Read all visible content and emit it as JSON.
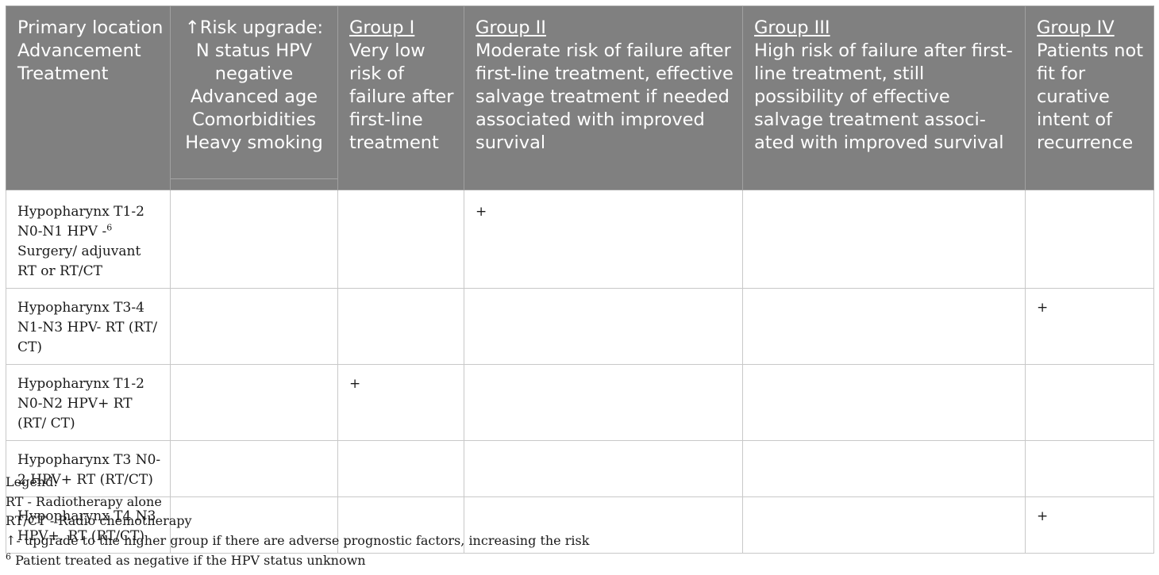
{
  "header": {
    "col1": "Primary loca­tion Advance­ment Treat­ment",
    "col2": "↑Risk upgrade: N status HPV negative Advanced age Comorbidities Heavy smoking",
    "groups": [
      {
        "title": "Group I",
        "desc": "Very low risk of failure after first-line treat­ment"
      },
      {
        "title": "Group II",
        "desc": "Moderate risk of failure after first-line treatment, effective salvage treat­ment if needed associated with improved survival"
      },
      {
        "title": "Group III",
        "desc": "High risk of failure after first-line treatment, still possibility of effective salvage treatment associ­ated with improved sur­vival"
      },
      {
        "title": "Group IV",
        "desc": "Patients not fit for curative intent of recurrence"
      }
    ]
  },
  "rows": [
    {
      "desc_a": "Hypopharynx T1-2 N0-N1 HPV -",
      "sup": "6",
      "desc_b": " Surgery/ adjuvant RT or RT/CT",
      "marks": [
        "",
        "",
        "+",
        "",
        ""
      ]
    },
    {
      "desc_a": "Hypopharynx T3-4 N1-N3 HPV- RT (RT/ CT)",
      "sup": "",
      "desc_b": "",
      "marks": [
        "",
        "",
        "",
        "",
        "+"
      ]
    },
    {
      "desc_a": "Hypopharynx T1-2 N0-N2 HPV+ RT (RT/ CT)",
      "sup": "",
      "desc_b": "",
      "marks": [
        "",
        "+",
        "",
        "",
        ""
      ]
    },
    {
      "desc_a": "Hypopharynx T3 N0-2 HPV+ RT (RT/CT)",
      "sup": "",
      "desc_b": "",
      "marks": [
        "",
        "",
        "",
        "",
        ""
      ]
    },
    {
      "desc_a": "Hypopharynx T4 N3 HPV+. RT (RT/CT)",
      "sup": "",
      "desc_b": "",
      "marks": [
        "",
        "",
        "",
        "",
        "+"
      ]
    }
  ],
  "legend": {
    "title": "Legend:",
    "line1": "RT - Radiotherapy alone",
    "line2": "RT/CT - Radio chemotherapy",
    "line3": "↑- upgrade to the higher group if there are adverse prognostic factors, increasing the risk",
    "line4_sup": "6",
    "line4": " Patient treated as negative if the HPV status unknown"
  }
}
